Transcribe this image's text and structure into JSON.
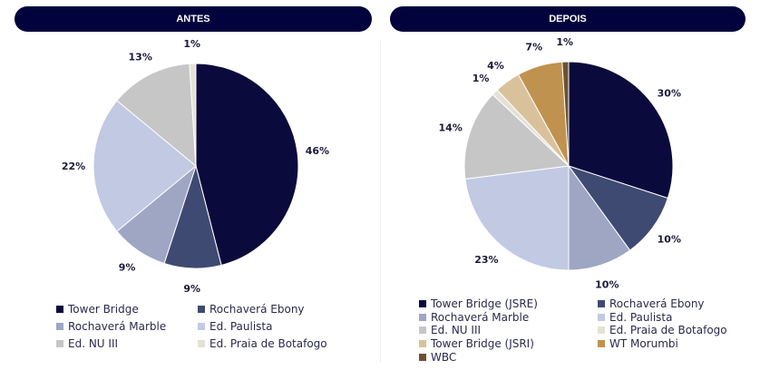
{
  "chart_data": [
    {
      "type": "pie",
      "title": "ANTES",
      "labels": [
        "Tower Bridge",
        "Rochaverá Ebony",
        "Rochaverá Marble",
        "Ed. Paulista",
        "Ed. NU III",
        "Ed. Praia de Botafogo"
      ],
      "values": [
        46,
        9,
        9,
        22,
        13,
        1
      ],
      "value_labels": [
        "46%",
        "9%",
        "9%",
        "22%",
        "13%",
        "1%"
      ],
      "colors": [
        "#0b0a3d",
        "#3f4a72",
        "#9ea6c4",
        "#c2c9e3",
        "#c6c6c6",
        "#e4e1d6"
      ]
    },
    {
      "type": "pie",
      "title": "DEPOIS",
      "labels": [
        "Tower Bridge (JSRE)",
        "Rochaverá Ebony",
        "Rochaverá Marble",
        "Ed. Paulista",
        "Ed. NU III",
        "Ed. Praia de Botafogo",
        "Tower Bridge (JSRI)",
        "WT Morumbi",
        "WBC"
      ],
      "values": [
        30,
        10,
        10,
        23,
        14,
        1,
        4,
        7,
        1
      ],
      "value_labels": [
        "30%",
        "10%",
        "10%",
        "23%",
        "14%",
        "1%",
        "4%",
        "7%",
        "1%"
      ],
      "colors": [
        "#0b0a3d",
        "#3f4a72",
        "#9ea6c4",
        "#c2c9e3",
        "#c6c6c6",
        "#e4e1d6",
        "#d9c29b",
        "#c0924f",
        "#6b5232"
      ]
    }
  ]
}
